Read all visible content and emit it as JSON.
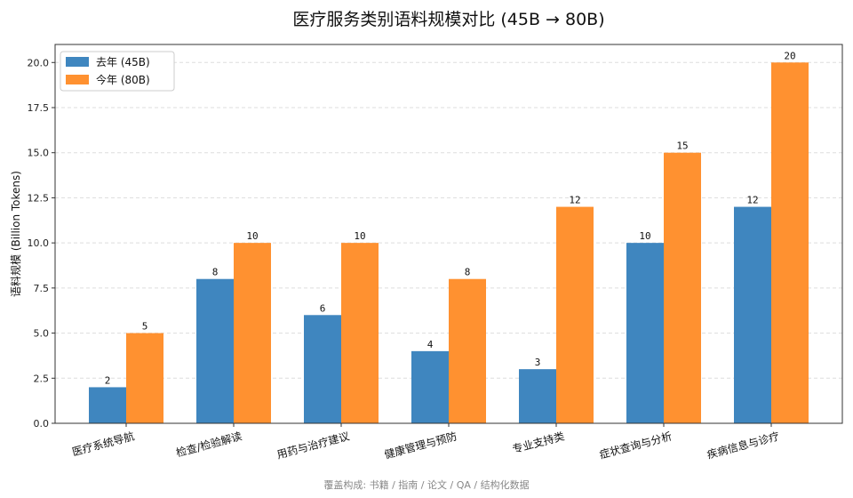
{
  "chart_data": {
    "type": "bar",
    "title": "医疗服务类别语料规模对比 (45B → 80B)",
    "ylabel": "语料规模 (Billion Tokens)",
    "xlabel": "",
    "ylim": [
      0,
      21
    ],
    "yticks": [
      "0.0",
      "2.5",
      "5.0",
      "7.5",
      "10.0",
      "12.5",
      "15.0",
      "17.5",
      "20.0"
    ],
    "grid": "horizontal dashed",
    "legend_position": "top-left",
    "categories": [
      "医疗系统导航",
      "检查/检验解读",
      "用药与治疗建议",
      "健康管理与预防",
      "专业支持类",
      "症状查询与分析",
      "疾病信息与诊疗"
    ],
    "series": [
      {
        "name": "去年 (45B)",
        "color": "#3f86bf",
        "values": [
          2,
          8,
          6,
          4,
          3,
          10,
          12
        ]
      },
      {
        "name": "今年 (80B)",
        "color": "#ff9130",
        "values": [
          5,
          10,
          10,
          8,
          12,
          15,
          20
        ]
      }
    ]
  },
  "footer": "覆盖构成: 书籍 / 指南 / 论文 / QA / 结构化数据"
}
